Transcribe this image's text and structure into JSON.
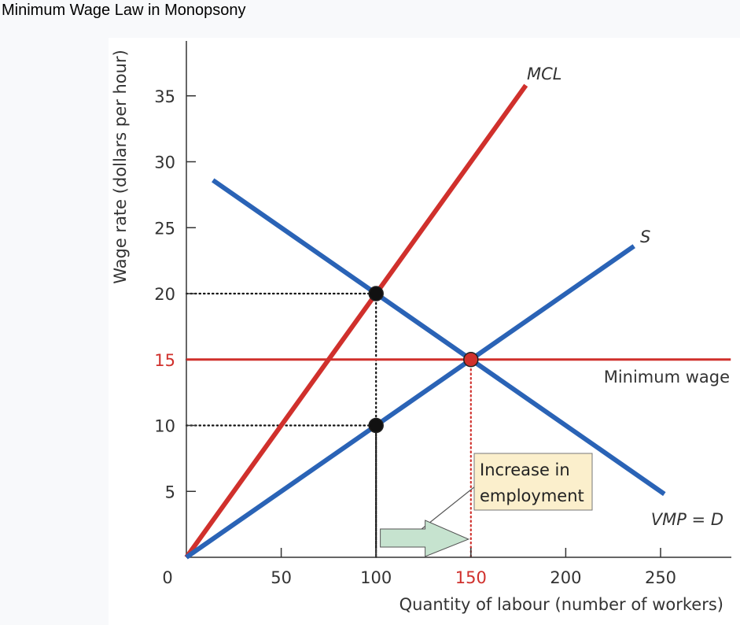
{
  "title": "Minimum Wage Law in Monopsony",
  "chart_data": {
    "type": "line",
    "xlabel": "Quantity of labour (number of workers)",
    "ylabel": "Wage rate (dollars per hour)",
    "xlim": [
      0,
      287
    ],
    "ylim": [
      0,
      39
    ],
    "x_ticks": [
      0,
      50,
      100,
      150,
      200,
      250
    ],
    "y_ticks": [
      5,
      10,
      15,
      20,
      25,
      30,
      35
    ],
    "highlight_tick_color": "#d0302c",
    "highlight_x_tick": 150,
    "highlight_y_tick": 15,
    "series": [
      {
        "name": "MCL",
        "color": "#d0302c",
        "points": [
          [
            0,
            0
          ],
          [
            179,
            35.8
          ]
        ]
      },
      {
        "name": "S",
        "color": "#2a63b6",
        "points": [
          [
            0,
            0
          ],
          [
            236,
            23.6
          ]
        ]
      },
      {
        "name": "VMP = D",
        "color": "#2a63b6",
        "points": [
          [
            14,
            28.6
          ],
          [
            252,
            4.8
          ]
        ]
      },
      {
        "name": "Minimum wage",
        "color": "#d0302c",
        "points": [
          [
            0,
            15
          ],
          [
            287,
            15
          ]
        ]
      }
    ],
    "points": [
      {
        "x": 100,
        "y": 20,
        "color": "#111111"
      },
      {
        "x": 100,
        "y": 10,
        "color": "#111111"
      },
      {
        "x": 150,
        "y": 15,
        "color": "#d0302c"
      }
    ],
    "guides": [
      {
        "x": 100,
        "y": 20,
        "color": "#111111"
      },
      {
        "x": 100,
        "y": 10,
        "color": "#111111"
      },
      {
        "x": 150,
        "y": 15,
        "color": "#d0302c"
      }
    ],
    "annotation": {
      "text_line1": "Increase in",
      "text_line2": "employment",
      "arrow_from": 101,
      "arrow_to": 150,
      "box_color": "#fbefcc",
      "arrow_color": "#c6e3cf"
    },
    "grid": false,
    "legend": "none"
  }
}
